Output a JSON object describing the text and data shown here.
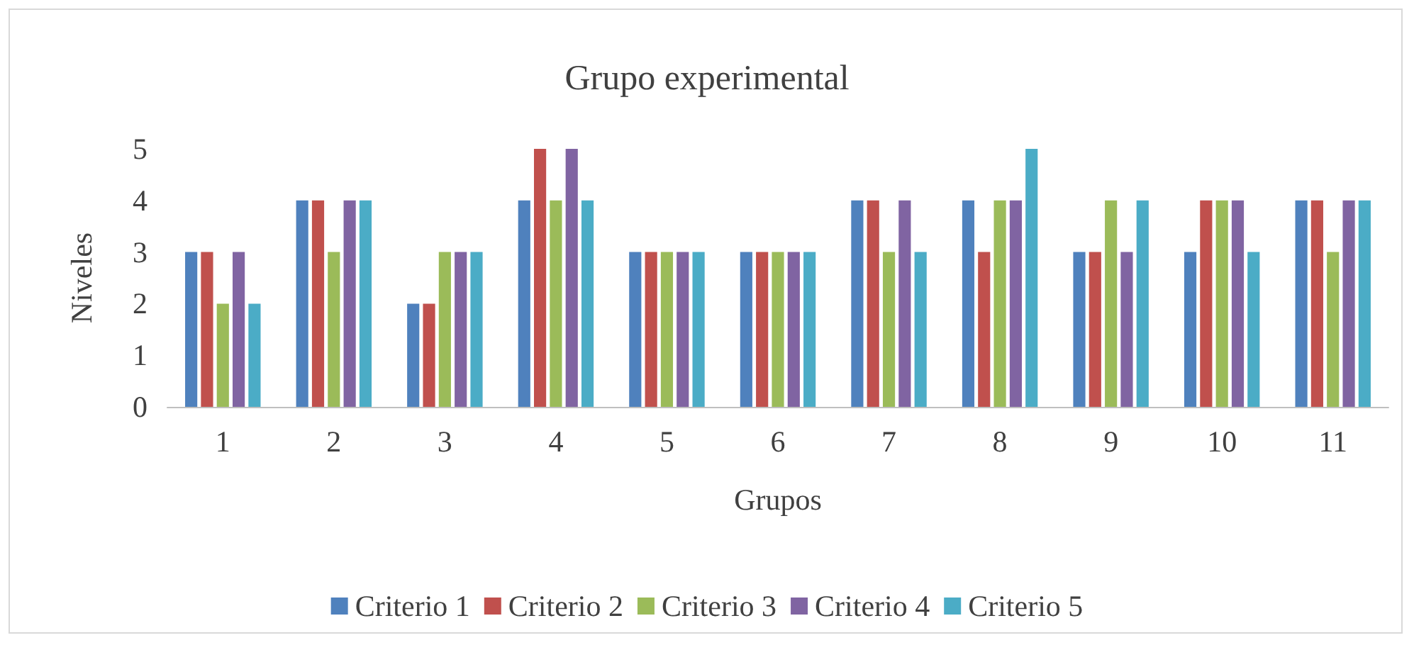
{
  "chart_data": {
    "type": "bar",
    "title": "Grupo experimental",
    "xlabel": "Grupos",
    "ylabel": "Niveles",
    "categories": [
      "1",
      "2",
      "3",
      "4",
      "5",
      "6",
      "7",
      "8",
      "9",
      "10",
      "11"
    ],
    "series": [
      {
        "name": "Criterio 1",
        "color": "#4f81bd",
        "values": [
          3,
          4,
          2,
          4,
          3,
          3,
          4,
          4,
          3,
          3,
          4
        ]
      },
      {
        "name": "Criterio 2",
        "color": "#c0504d",
        "values": [
          3,
          4,
          2,
          5,
          3,
          3,
          4,
          3,
          3,
          4,
          4
        ]
      },
      {
        "name": "Criterio 3",
        "color": "#9bbb59",
        "values": [
          2,
          3,
          3,
          4,
          3,
          3,
          3,
          4,
          4,
          4,
          3
        ]
      },
      {
        "name": "Criterio 4",
        "color": "#8064a2",
        "values": [
          3,
          4,
          3,
          5,
          3,
          3,
          4,
          4,
          3,
          4,
          4
        ]
      },
      {
        "name": "Criterio 5",
        "color": "#4bacc6",
        "values": [
          2,
          4,
          3,
          4,
          3,
          3,
          3,
          5,
          4,
          3,
          4
        ]
      }
    ],
    "ylim": [
      0,
      5
    ],
    "yticks": [
      0,
      1,
      2,
      3,
      4,
      5
    ],
    "grid": false,
    "legend": "bottom"
  }
}
